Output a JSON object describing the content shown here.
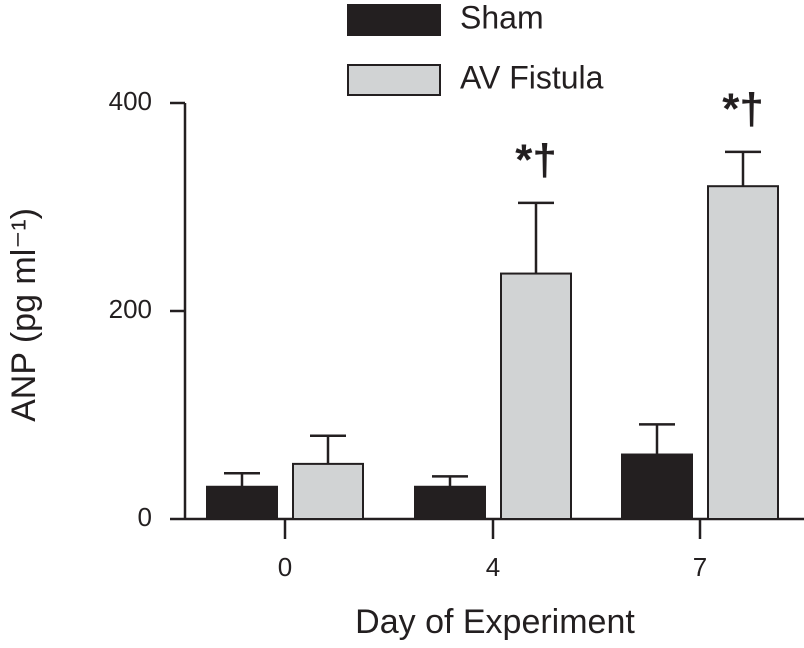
{
  "chart_data": {
    "type": "bar",
    "x_label": "Day of Experiment",
    "y_label": "ANP (pg ml⁻¹)",
    "categories": [
      "0",
      "4",
      "7"
    ],
    "series": [
      {
        "name": "Sham",
        "color": "#231f20",
        "values": [
          31,
          31,
          62
        ],
        "errors": [
          13,
          10,
          29
        ],
        "annotations": [
          null,
          null,
          null
        ]
      },
      {
        "name": "AV Fistula",
        "color": "#d1d3d4",
        "values": [
          53,
          236,
          320
        ],
        "errors": [
          27,
          68,
          33
        ],
        "annotations": [
          null,
          "*†",
          "*†"
        ]
      }
    ],
    "ylim": [
      0,
      400
    ],
    "yticks": [
      0,
      200,
      400
    ],
    "grid": false,
    "legend": "top"
  }
}
